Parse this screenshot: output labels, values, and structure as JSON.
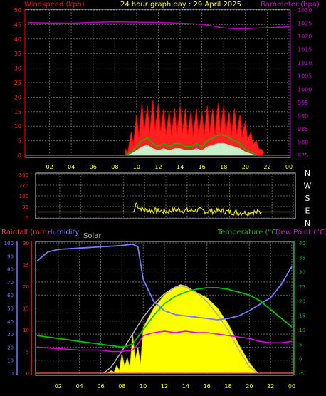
{
  "title": "24 hour graph day : 29 April 2025",
  "colors": {
    "wind": "#ff0000",
    "gust_fill": "#ff2020",
    "avg_wind": "#00c000",
    "avg_wind_fill": "#c8f0c8",
    "baro": "#c000c0",
    "wind_dir": "#e8e000",
    "humidity": "#7878ff",
    "temperature": "#00c000",
    "dewpoint": "#e000e0",
    "solar_fill": "#ffff00",
    "solar_theory": "#b0b0b0",
    "rain_axis": "#ff2020",
    "grid": "#5a5a5a",
    "title": "#ffff00"
  },
  "chart_data": [
    {
      "type": "line",
      "panel": "wind_baro",
      "title": "24 hour graph day : 29 April 2025",
      "left_label": "Windspeed (kph)",
      "right_label": "Barometer (hpa)",
      "x_ticks": [
        "02",
        "04",
        "06",
        "08",
        "10",
        "12",
        "14",
        "16",
        "18",
        "20",
        "22",
        "00"
      ],
      "y_left_ticks": [
        "0",
        "5",
        "10",
        "15",
        "20",
        "25",
        "30",
        "35",
        "40",
        "45",
        "50"
      ],
      "y_left_lim": [
        0,
        50
      ],
      "y_right_ticks": [
        "975",
        "980",
        "985",
        "990",
        "995",
        "1000",
        "1005",
        "1010",
        "1015",
        "1020",
        "1025",
        "1030"
      ],
      "y_right_lim": [
        975,
        1030
      ],
      "x_lim_hours": [
        0,
        24
      ],
      "series": [
        {
          "name": "Barometer",
          "axis": "right",
          "hours": [
            0,
            2,
            4,
            6,
            8,
            10,
            12,
            14,
            16,
            17,
            18,
            19,
            20,
            22,
            24
          ],
          "values": [
            1025.2,
            1025.1,
            1025.0,
            1025.3,
            1025.5,
            1025.4,
            1025.3,
            1025.0,
            1024.6,
            1023.9,
            1023.2,
            1022.9,
            1022.9,
            1023.3,
            1023.6
          ]
        },
        {
          "name": "Wind gust",
          "axis": "left",
          "hours": [
            9.0,
            9.5,
            10.0,
            10.5,
            11.0,
            11.5,
            12.0,
            12.5,
            13.0,
            13.5,
            14.0,
            14.5,
            15.0,
            15.5,
            16.0,
            16.5,
            17.0,
            17.5,
            18.0,
            18.5,
            19.0,
            19.5,
            20.0,
            20.5,
            21.0,
            21.5
          ],
          "values": [
            2,
            8,
            14,
            18,
            17,
            19,
            18,
            16,
            15,
            16,
            17,
            16,
            15,
            16,
            15,
            17,
            16,
            18,
            17,
            15,
            16,
            14,
            12,
            8,
            5,
            2
          ]
        },
        {
          "name": "Average wind",
          "axis": "left",
          "hours": [
            9.0,
            9.5,
            10.0,
            10.5,
            11.0,
            11.5,
            12.0,
            12.5,
            13.0,
            13.5,
            14.0,
            14.5,
            15.0,
            15.5,
            16.0,
            16.5,
            17.0,
            17.5,
            18.0,
            18.5,
            19.0,
            19.5,
            20.0,
            20.5,
            21.0
          ],
          "values": [
            0,
            1,
            3,
            5,
            6,
            4,
            3,
            4,
            3,
            4,
            4,
            3,
            3,
            4,
            3,
            5,
            6,
            7,
            7,
            6,
            5,
            4,
            2,
            1,
            0
          ]
        }
      ]
    },
    {
      "type": "line",
      "panel": "wind_direction",
      "y_left_ticks": [
        "360",
        "270",
        "180",
        "90",
        "0"
      ],
      "y_lim": [
        0,
        360
      ],
      "compass_labels": [
        "N",
        "W",
        "S",
        "E",
        "N"
      ],
      "series": [
        {
          "name": "Wind direction",
          "hours": [
            0,
            2,
            4,
            6,
            8,
            9.0,
            9.2,
            9.5,
            10,
            11,
            12,
            13,
            14,
            15,
            16,
            17,
            18,
            19,
            20,
            21,
            22,
            24
          ],
          "values": [
            45,
            45,
            45,
            45,
            45,
            45,
            120,
            80,
            60,
            55,
            50,
            65,
            55,
            60,
            50,
            55,
            45,
            40,
            42,
            45,
            45,
            45
          ]
        }
      ]
    },
    {
      "type": "line",
      "panel": "temp_hum_solar",
      "left_labels": [
        "Rainfall (mm)",
        "Humidity"
      ],
      "center_label": "Solar",
      "right_labels": [
        "Temperature (°C)",
        "Dew Point (°C)"
      ],
      "x_ticks": [
        "02",
        "04",
        "06",
        "08",
        "10",
        "12",
        "14",
        "16",
        "18",
        "20",
        "22",
        "00"
      ],
      "humidity_ticks": [
        "0",
        "10",
        "20",
        "30",
        "40",
        "50",
        "60",
        "70",
        "80",
        "90",
        "100"
      ],
      "humidity_lim": [
        0,
        100
      ],
      "rain_ticks": [
        "0",
        "5",
        "10",
        "15",
        "20",
        "25",
        "30"
      ],
      "rain_lim": [
        0,
        30
      ],
      "temp_ticks": [
        "-5",
        "0",
        "5",
        "10",
        "15",
        "20",
        "25",
        "30",
        "35",
        "40"
      ],
      "temp_lim": [
        -5,
        40
      ],
      "series": [
        {
          "name": "Humidity",
          "axis": "humidity",
          "hours": [
            0,
            1,
            2,
            4,
            6,
            8,
            9,
            9.5,
            10,
            11,
            12,
            13,
            14,
            15,
            16,
            17,
            18,
            19,
            20,
            21,
            22,
            23,
            24
          ],
          "values": [
            86,
            93,
            95,
            96,
            97,
            98,
            99,
            97,
            72,
            55,
            48,
            45,
            44,
            43,
            42,
            41,
            42,
            44,
            48,
            53,
            58,
            68,
            82
          ]
        },
        {
          "name": "Temperature",
          "axis": "temp",
          "hours": [
            0,
            2,
            4,
            6,
            7,
            8,
            9,
            10,
            11,
            12,
            13,
            14,
            15,
            16,
            17,
            18,
            19,
            20,
            21,
            22,
            23,
            24
          ],
          "values": [
            8,
            7,
            6,
            5,
            4.5,
            4,
            5,
            10,
            15,
            19,
            21.5,
            23,
            24,
            24.5,
            24.5,
            24,
            23,
            22,
            20,
            17,
            14,
            11
          ]
        },
        {
          "name": "Dew Point",
          "axis": "temp",
          "hours": [
            0,
            2,
            4,
            6,
            7,
            8,
            9,
            9.5,
            10,
            11,
            12,
            13,
            14,
            15,
            16,
            17,
            18,
            19,
            20,
            21,
            22,
            23,
            24
          ],
          "values": [
            4,
            3.5,
            3,
            3,
            2.5,
            2.5,
            3,
            5,
            8,
            9,
            9.5,
            9,
            9.5,
            9,
            9,
            8.5,
            8,
            7.5,
            7,
            6,
            5.5,
            5.5,
            6
          ]
        },
        {
          "name": "Solar",
          "axis": "humidity",
          "hours": [
            6.3,
            7,
            7.5,
            8,
            8.5,
            9,
            9.5,
            10,
            11,
            12,
            13,
            13.5,
            14,
            15,
            16,
            17,
            18,
            19,
            20,
            20.8
          ],
          "values": [
            0,
            2,
            6,
            15,
            12,
            30,
            20,
            35,
            50,
            60,
            66,
            68,
            67,
            62,
            58,
            50,
            38,
            22,
            8,
            0
          ]
        },
        {
          "name": "Theoretical solar",
          "axis": "humidity",
          "hours": [
            6.3,
            7,
            8,
            9,
            10,
            11,
            12,
            13,
            13.6,
            14,
            15,
            16,
            17,
            18,
            19,
            20,
            20.8
          ],
          "values": [
            0,
            5,
            17,
            30,
            43,
            53,
            61,
            66,
            67,
            66,
            62,
            55,
            45,
            33,
            18,
            5,
            0
          ]
        },
        {
          "name": "Rainfall",
          "axis": "rain",
          "hours": [
            0,
            24
          ],
          "values": [
            0,
            0
          ]
        }
      ]
    }
  ]
}
